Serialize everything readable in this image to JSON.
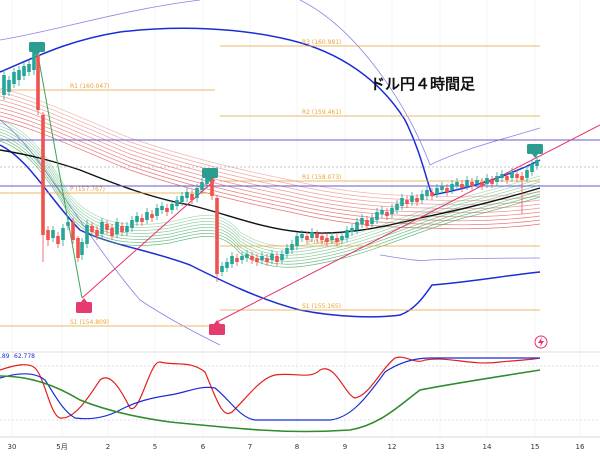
{
  "chart_data": {
    "type": "line",
    "title": "ドル円４時間足",
    "x_tick_labels": [
      "30",
      "5月",
      "2",
      "5",
      "6",
      "7",
      "8",
      "9",
      "12",
      "13",
      "14",
      "15",
      "16"
    ],
    "pivot_levels": [
      {
        "label": "R3 (160.981)",
        "value": 160.981,
        "color": "#e8a33a"
      },
      {
        "label": "R2 (159.461)",
        "value": 159.461,
        "color": "#e8a33a"
      },
      {
        "label": "R1 (158.073)",
        "value": 158.073,
        "color": "#e8a33a"
      },
      {
        "label": "P (156.553)",
        "value": 156.553,
        "color": "#e8a33a"
      },
      {
        "label": "S1 (155.165)",
        "value": 155.165,
        "color": "#e8a33a"
      },
      {
        "label": "R1 (160.047)",
        "value": 160.047,
        "color": "#e8a33a"
      },
      {
        "label": "P (157.767)",
        "value": 157.767,
        "color": "#e8a33a"
      },
      {
        "label": "S1 (154.809)",
        "value": 154.809,
        "color": "#e8a33a"
      }
    ],
    "oscillator_labels": [
      ".89",
      "62.778"
    ],
    "series": [
      {
        "kind": "candlestick",
        "up_color": "#26a69a",
        "down_color": "#ef5350"
      },
      {
        "kind": "moving_average",
        "color": "#111111"
      },
      {
        "kind": "bollinger_outer",
        "color": "#1a2ed6"
      },
      {
        "kind": "envelope",
        "color": "#7b74e0"
      },
      {
        "kind": "ribbon_down",
        "color": "#e05a5a"
      },
      {
        "kind": "ribbon_up",
        "color": "#3aa55a"
      },
      {
        "kind": "trendline",
        "color": "#e8306b"
      },
      {
        "kind": "oscillator_fast",
        "color": "#e0201e"
      },
      {
        "kind": "oscillator_slow",
        "color": "#1a2ed6"
      },
      {
        "kind": "oscillator_signal",
        "color": "#2e8b2e"
      }
    ],
    "marker_colors": {
      "peak": "#2a9d8f",
      "trough": "#e63b6f"
    },
    "grid": true
  }
}
